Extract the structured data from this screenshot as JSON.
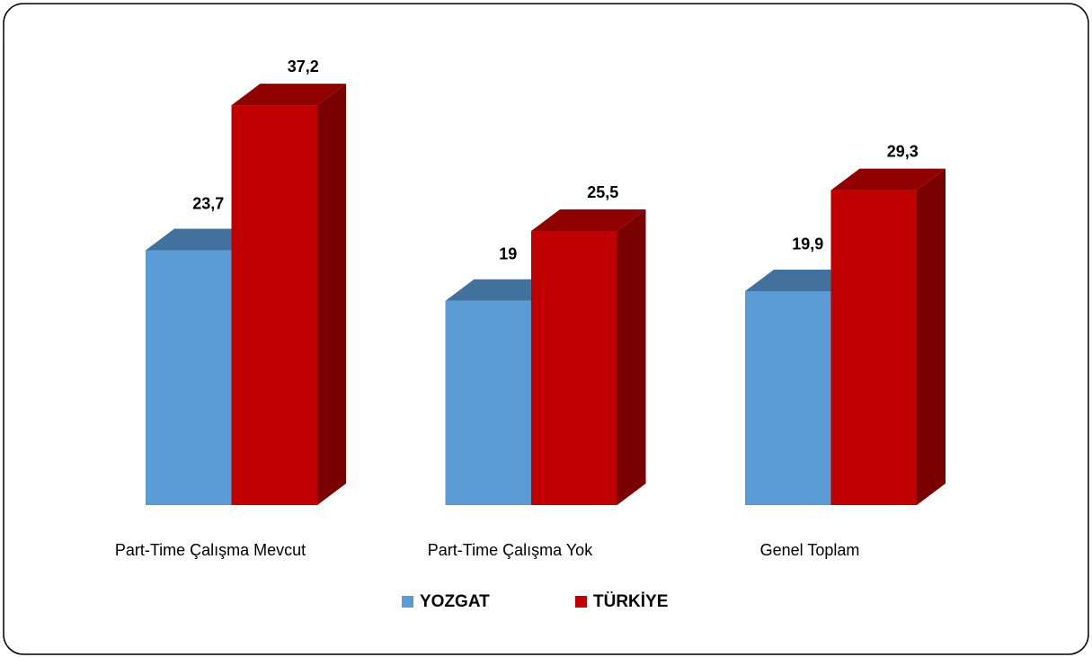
{
  "chart_data": {
    "type": "bar3d",
    "categories": [
      "Part-Time Çalışma Mevcut",
      "Part-Time Çalışma Yok",
      "Genel Toplam"
    ],
    "series": [
      {
        "name": "YOZGAT",
        "color": "#5b9bd5",
        "top_color": "#41719c",
        "values": [
          23.7,
          19,
          19.9
        ],
        "value_labels": [
          "23,7",
          "19",
          "19,9"
        ]
      },
      {
        "name": "TÜRKİYE",
        "color": "#c00000",
        "top_color": "#900000",
        "side_color": "#7a0000",
        "values": [
          37.2,
          25.5,
          29.3
        ],
        "value_labels": [
          "37,2",
          "25,5",
          "29,3"
        ]
      }
    ],
    "legend": "bottom"
  }
}
